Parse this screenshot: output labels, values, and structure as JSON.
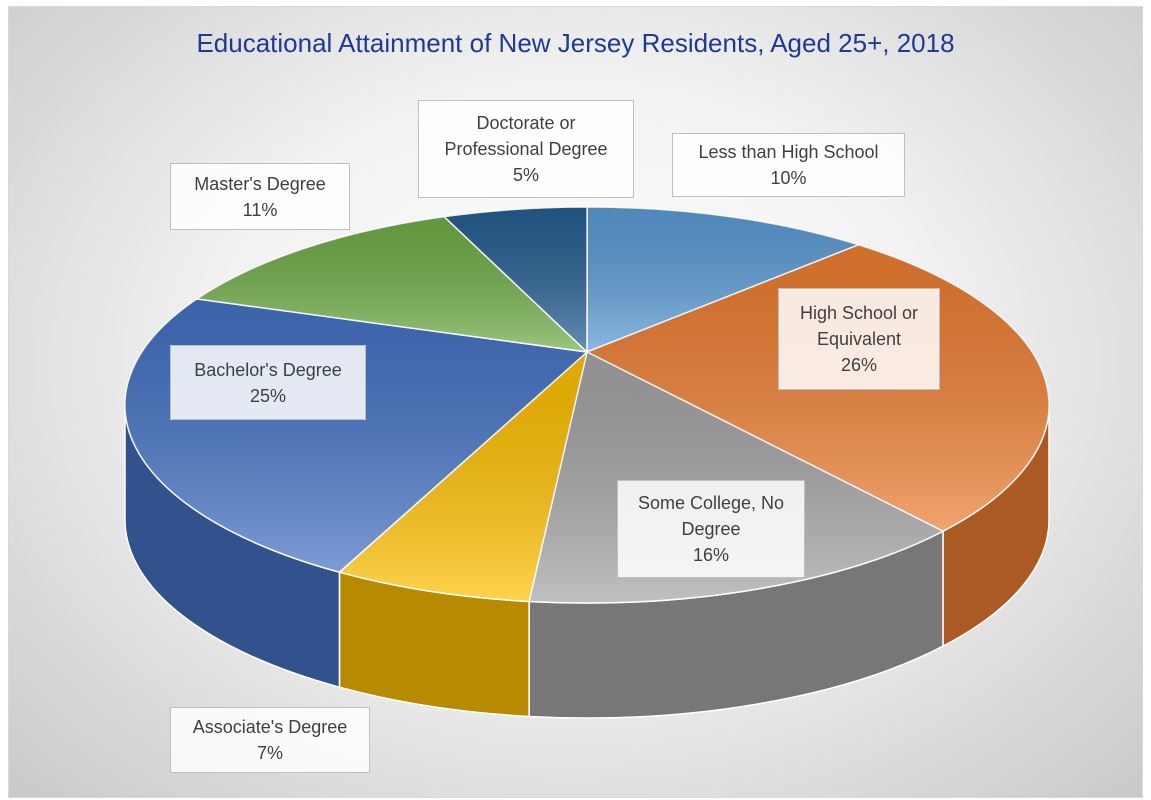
{
  "chart_data": {
    "type": "pie",
    "title": "Educational Attainment of New Jersey Residents, Aged 25+, 2018",
    "categories": [
      "Less than High School",
      "High School or Equivalent",
      "Some College, No Degree",
      "Associate's Degree",
      "Bachelor's Degree",
      "Master's Degree",
      "Doctorate or Professional Degree"
    ],
    "values": [
      10,
      26,
      16,
      7,
      25,
      11,
      5
    ],
    "value_labels": [
      "10%",
      "26%",
      "16%",
      "7%",
      "25%",
      "11%",
      "5%"
    ],
    "colors": [
      "#5b9bd5",
      "#ed7d31",
      "#a5a5a5",
      "#ffc000",
      "#4472c4",
      "#70ad47",
      "#255e91"
    ]
  }
}
